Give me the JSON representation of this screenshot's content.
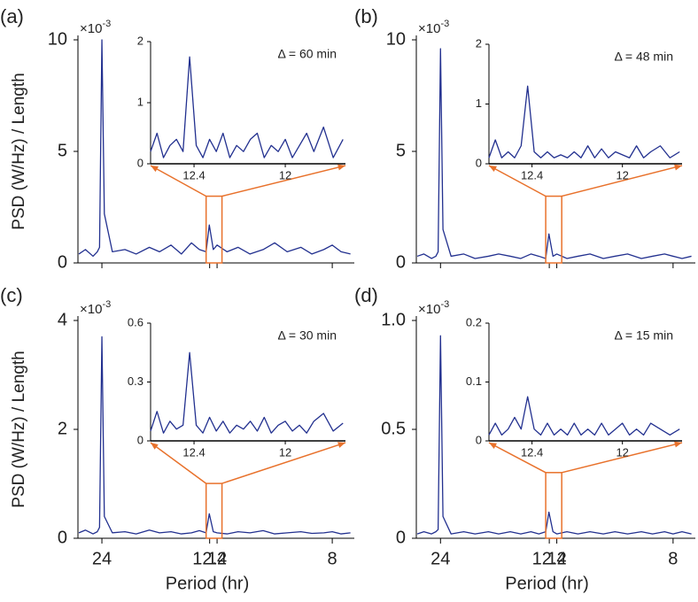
{
  "chart_data": [
    {
      "type": "line",
      "panel_label": "(a)",
      "annotation": "Δ = 60 min",
      "y_offset_base": "×10",
      "y_offset_exp": "-3",
      "ylabel": "PSD (W/Hz) / Length",
      "x_scale": "reciprocal",
      "xlim": [
        30.3,
        7.52
      ],
      "xticks": [
        24,
        12.4,
        12,
        8
      ],
      "xtick_labels": false,
      "ylim": [
        0,
        10
      ],
      "yticks": [
        0,
        5,
        10
      ],
      "color": "#22308f",
      "highlight_color": "#e8712b",
      "x": [
        30,
        28,
        26,
        25,
        24.5,
        24,
        23.5,
        22,
        20,
        18.5,
        17,
        16,
        15,
        14.2,
        13.5,
        13,
        12.6,
        12.42,
        12.2,
        12,
        11.5,
        11,
        10.5,
        10,
        9.6,
        9.2,
        8.8,
        8.5,
        8.2,
        8,
        7.8,
        7.6
      ],
      "values": [
        0.4,
        0.6,
        0.3,
        0.5,
        0.7,
        10,
        2.2,
        0.5,
        0.6,
        0.4,
        0.7,
        0.5,
        0.8,
        0.4,
        0.9,
        0.6,
        0.5,
        1.7,
        0.6,
        0.8,
        0.5,
        0.7,
        0.4,
        0.6,
        0.9,
        0.5,
        0.7,
        0.4,
        0.6,
        0.8,
        0.5,
        0.4
      ],
      "inset": {
        "xlim": [
          12.6,
          11.75
        ],
        "xticks": [
          12.4,
          12
        ],
        "ylim": [
          0,
          2
        ],
        "yticks": [
          0,
          1,
          2
        ],
        "x": [
          12.6,
          12.57,
          12.54,
          12.51,
          12.48,
          12.45,
          12.42,
          12.39,
          12.36,
          12.33,
          12.3,
          12.27,
          12.24,
          12.21,
          12.18,
          12.15,
          12.12,
          12.09,
          12.06,
          12.03,
          12,
          11.97,
          11.94,
          11.91,
          11.88,
          11.84,
          11.8,
          11.76
        ],
        "values": [
          0.2,
          0.5,
          0.1,
          0.3,
          0.4,
          0.2,
          1.75,
          0.3,
          0.1,
          0.4,
          0.2,
          0.5,
          0.1,
          0.3,
          0.2,
          0.4,
          0.5,
          0.1,
          0.3,
          0.2,
          0.4,
          0.1,
          0.3,
          0.5,
          0.2,
          0.6,
          0.1,
          0.4
        ]
      }
    },
    {
      "type": "line",
      "panel_label": "(b)",
      "annotation": "Δ = 48 min",
      "y_offset_base": "×10",
      "y_offset_exp": "-3",
      "x_scale": "reciprocal",
      "xlim": [
        30.3,
        7.52
      ],
      "xticks": [
        24,
        12.4,
        12,
        8
      ],
      "xtick_labels": false,
      "ylim": [
        0,
        10
      ],
      "yticks": [
        0,
        5,
        10
      ],
      "color": "#22308f",
      "highlight_color": "#e8712b",
      "x": [
        30,
        28,
        26,
        25,
        24.5,
        24,
        23.5,
        22,
        20,
        18.5,
        17,
        16,
        15,
        14.2,
        13.5,
        13,
        12.6,
        12.42,
        12.2,
        12,
        11.5,
        11,
        10.5,
        10,
        9.6,
        9.2,
        8.8,
        8.5,
        8.2,
        8,
        7.8,
        7.6
      ],
      "values": [
        0.3,
        0.4,
        0.2,
        0.3,
        0.5,
        9.6,
        1.5,
        0.3,
        0.4,
        0.2,
        0.3,
        0.4,
        0.3,
        0.2,
        0.4,
        0.3,
        0.2,
        1.3,
        0.3,
        0.4,
        0.2,
        0.3,
        0.4,
        0.2,
        0.3,
        0.4,
        0.2,
        0.3,
        0.4,
        0.3,
        0.2,
        0.3
      ],
      "inset": {
        "xlim": [
          12.6,
          11.75
        ],
        "xticks": [
          12.4,
          12
        ],
        "ylim": [
          0,
          2
        ],
        "yticks": [
          0,
          1,
          2
        ],
        "x": [
          12.6,
          12.57,
          12.54,
          12.51,
          12.48,
          12.45,
          12.42,
          12.39,
          12.36,
          12.33,
          12.3,
          12.27,
          12.24,
          12.21,
          12.18,
          12.15,
          12.12,
          12.09,
          12.06,
          12.03,
          12,
          11.97,
          11.94,
          11.91,
          11.88,
          11.84,
          11.8,
          11.76
        ],
        "values": [
          0.1,
          0.4,
          0.1,
          0.2,
          0.1,
          0.3,
          1.3,
          0.2,
          0.1,
          0.2,
          0.1,
          0.15,
          0.1,
          0.2,
          0.1,
          0.3,
          0.1,
          0.25,
          0.1,
          0.2,
          0.15,
          0.1,
          0.3,
          0.1,
          0.2,
          0.3,
          0.1,
          0.2
        ]
      }
    },
    {
      "type": "line",
      "panel_label": "(c)",
      "annotation": "Δ = 30 min",
      "y_offset_base": "×10",
      "y_offset_exp": "-3",
      "ylabel": "PSD (W/Hz) /  Length",
      "xlabel": "Period (hr)",
      "x_scale": "reciprocal",
      "xlim": [
        30.3,
        7.52
      ],
      "xticks": [
        24,
        12.4,
        12,
        8
      ],
      "xtick_labels": true,
      "ylim": [
        0,
        4
      ],
      "yticks": [
        0,
        2,
        4
      ],
      "color": "#22308f",
      "highlight_color": "#e8712b",
      "x": [
        30,
        28,
        26,
        25,
        24.5,
        24,
        23.5,
        22,
        20,
        18.5,
        17,
        16,
        15,
        14.2,
        13.5,
        13,
        12.6,
        12.42,
        12.2,
        12,
        11.5,
        11,
        10.5,
        10,
        9.6,
        9.2,
        8.8,
        8.5,
        8.2,
        8,
        7.8,
        7.6
      ],
      "values": [
        0.1,
        0.15,
        0.08,
        0.12,
        0.2,
        3.7,
        0.4,
        0.1,
        0.12,
        0.08,
        0.15,
        0.1,
        0.12,
        0.08,
        0.1,
        0.14,
        0.1,
        0.45,
        0.12,
        0.1,
        0.08,
        0.12,
        0.1,
        0.14,
        0.08,
        0.1,
        0.12,
        0.09,
        0.1,
        0.12,
        0.08,
        0.1
      ],
      "inset": {
        "xlim": [
          12.6,
          11.75
        ],
        "xticks": [
          12.4,
          12
        ],
        "ylim": [
          0,
          0.6
        ],
        "yticks": [
          0,
          0.3,
          0.6
        ],
        "x": [
          12.6,
          12.57,
          12.54,
          12.51,
          12.48,
          12.45,
          12.42,
          12.39,
          12.36,
          12.33,
          12.3,
          12.27,
          12.24,
          12.21,
          12.18,
          12.15,
          12.12,
          12.09,
          12.06,
          12.03,
          12,
          11.97,
          11.94,
          11.91,
          11.88,
          11.84,
          11.8,
          11.76
        ],
        "values": [
          0.05,
          0.15,
          0.04,
          0.1,
          0.06,
          0.08,
          0.45,
          0.08,
          0.04,
          0.12,
          0.05,
          0.1,
          0.04,
          0.08,
          0.06,
          0.1,
          0.05,
          0.12,
          0.04,
          0.08,
          0.1,
          0.05,
          0.08,
          0.04,
          0.1,
          0.14,
          0.05,
          0.09
        ]
      }
    },
    {
      "type": "line",
      "panel_label": "(d)",
      "annotation": "Δ = 15 min",
      "y_offset_base": "×10",
      "y_offset_exp": "-3",
      "xlabel": "Period (hr)",
      "x_scale": "reciprocal",
      "xlim": [
        30.3,
        7.52
      ],
      "xticks": [
        24,
        12.4,
        12,
        8
      ],
      "xtick_labels": true,
      "ylim": [
        0,
        1
      ],
      "yticks": [
        0,
        0.5,
        {
          "value": 1,
          "label": "1.0"
        }
      ],
      "color": "#22308f",
      "highlight_color": "#e8712b",
      "x": [
        30,
        28,
        26,
        25,
        24.5,
        24,
        23.5,
        22,
        20,
        18.5,
        17,
        16,
        15,
        14.2,
        13.5,
        13,
        12.6,
        12.42,
        12.2,
        12,
        11.5,
        11,
        10.5,
        10,
        9.6,
        9.2,
        8.8,
        8.5,
        8.2,
        8,
        7.8,
        7.6
      ],
      "values": [
        0.02,
        0.03,
        0.02,
        0.03,
        0.04,
        0.93,
        0.1,
        0.02,
        0.03,
        0.02,
        0.03,
        0.02,
        0.03,
        0.02,
        0.03,
        0.02,
        0.03,
        0.12,
        0.03,
        0.02,
        0.03,
        0.02,
        0.03,
        0.02,
        0.03,
        0.02,
        0.03,
        0.02,
        0.03,
        0.02,
        0.03,
        0.02
      ],
      "inset": {
        "xlim": [
          12.6,
          11.75
        ],
        "xticks": [
          12.4,
          12
        ],
        "ylim": [
          0,
          0.2
        ],
        "yticks": [
          0,
          0.1,
          0.2
        ],
        "x": [
          12.6,
          12.57,
          12.54,
          12.51,
          12.48,
          12.45,
          12.42,
          12.39,
          12.36,
          12.33,
          12.3,
          12.27,
          12.24,
          12.21,
          12.18,
          12.15,
          12.12,
          12.09,
          12.06,
          12.03,
          12,
          11.97,
          11.94,
          11.91,
          11.88,
          11.84,
          11.8,
          11.76
        ],
        "values": [
          0.01,
          0.03,
          0.01,
          0.02,
          0.04,
          0.02,
          0.075,
          0.02,
          0.01,
          0.03,
          0.01,
          0.02,
          0.01,
          0.03,
          0.01,
          0.02,
          0.01,
          0.03,
          0.01,
          0.02,
          0.03,
          0.01,
          0.02,
          0.01,
          0.03,
          0.02,
          0.01,
          0.02
        ]
      }
    }
  ]
}
